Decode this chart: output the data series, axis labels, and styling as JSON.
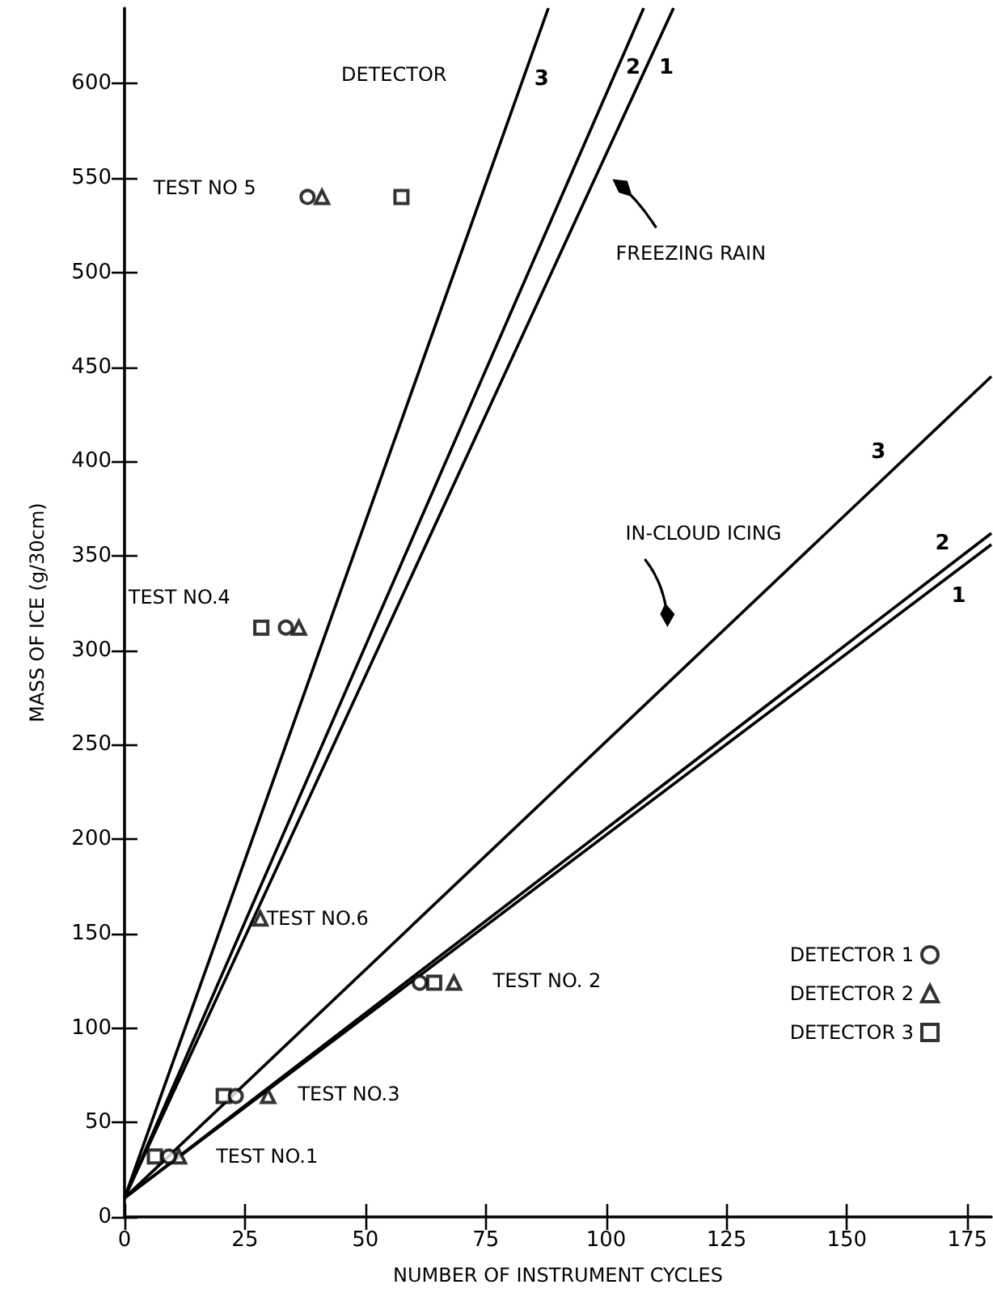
{
  "chart_data": {
    "type": "scatter",
    "xlabel": "NUMBER OF INSTRUMENT CYCLES",
    "ylabel": "MASS OF ICE (g/30cm)",
    "xlim": [
      0,
      180
    ],
    "xticks": [
      0,
      25,
      50,
      75,
      100,
      125,
      150,
      175
    ],
    "ylim": [
      0,
      640
    ],
    "yticks": [
      0,
      50,
      100,
      150,
      200,
      250,
      300,
      350,
      400,
      450,
      500,
      550,
      600
    ],
    "grid": false,
    "legend": "bottom right",
    "series": [
      {
        "name": "DETECTOR 1",
        "color": "#000000",
        "marker": "circle",
        "x": [
          9.2,
          61.3,
          23.1,
          33.5,
          38
        ],
        "values": [
          32,
          124,
          64,
          312,
          540
        ]
      },
      {
        "name": "DETECTOR 2",
        "color": "#000000",
        "marker": "triangle",
        "x": [
          11.3,
          68.4,
          29.8,
          36.2,
          41,
          28.2
        ],
        "values": [
          32,
          124,
          64,
          312,
          540,
          158
        ]
      },
      {
        "name": "DETECTOR 3",
        "color": "#000000",
        "marker": "square",
        "x": [
          6.3,
          64.3,
          20.6,
          28.4,
          57.5
        ],
        "values": [
          32,
          124,
          64,
          312,
          540
        ]
      },
      {
        "name": "3",
        "type": "line",
        "color": "#000000",
        "x": [
          0,
          88
        ],
        "values": [
          10,
          640
        ]
      },
      {
        "name": "2",
        "type": "line",
        "color": "#000000",
        "x": [
          0,
          107.8
        ],
        "values": [
          10,
          640
        ]
      },
      {
        "name": "1",
        "type": "line",
        "color": "#000000",
        "x": [
          0,
          114
        ],
        "values": [
          10,
          640
        ]
      },
      {
        "name": "3",
        "type": "line",
        "color": "#000000",
        "x": [
          0,
          180
        ],
        "values": [
          10,
          445
        ]
      },
      {
        "name": "2",
        "type": "line",
        "color": "#000000",
        "x": [
          0,
          180
        ],
        "values": [
          10,
          362
        ]
      },
      {
        "name": "1",
        "type": "line",
        "color": "#000000",
        "x": [
          0,
          180
        ],
        "values": [
          10,
          356
        ]
      }
    ],
    "annotations": [
      "DETECTOR",
      "FREEZING RAIN",
      "IN-CLOUD ICING",
      "TEST NO 5",
      "TEST NO.4",
      {
        "text": "TEST NO.6",
        "x": 29.5,
        "y": 158
      },
      "TEST NO. 2",
      "TEST NO.3",
      "TEST NO.1"
    ]
  }
}
